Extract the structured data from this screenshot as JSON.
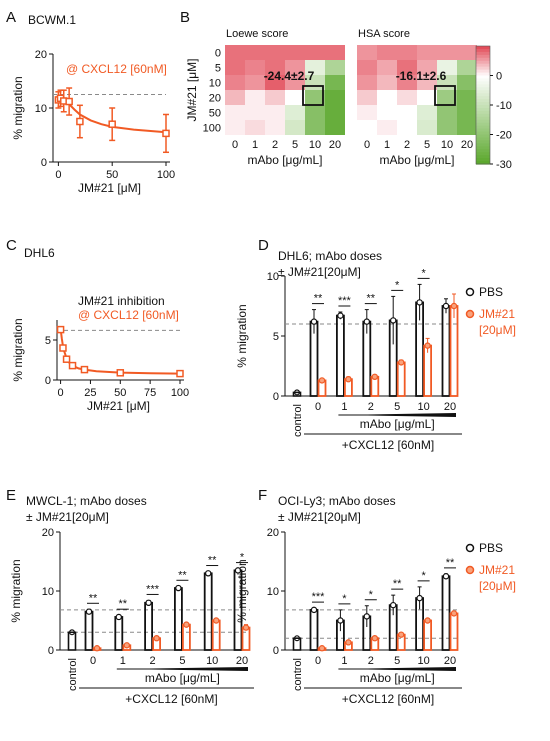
{
  "colors": {
    "orange": "#f15a24",
    "orange_light": "#f9a27c",
    "black": "#111111",
    "grid_dash": "#8a8a8a"
  },
  "chart_data": [
    {
      "panel": "A",
      "type": "line",
      "title": "BCWM.1",
      "annotation": "@ CXCL12 [60nM]",
      "xlabel": "JM#21 [μM]",
      "ylabel": "% migration",
      "xticks": [
        0,
        50,
        100
      ],
      "yticks": [
        0,
        10,
        20
      ],
      "xlim": [
        -5,
        100
      ],
      "ylim": [
        0,
        20
      ],
      "reference_y": 12.5,
      "points": [
        {
          "x": 0,
          "y": 11.5,
          "err": 1.5
        },
        {
          "x": 2,
          "y": 11.8,
          "err": 1.5
        },
        {
          "x": 5,
          "y": 11.3,
          "err": 2.0
        },
        {
          "x": 10,
          "y": 11.2,
          "err": 2.5
        },
        {
          "x": 20,
          "y": 7.5,
          "err": 3.0
        },
        {
          "x": 50,
          "y": 7.0,
          "err": 3.0
        },
        {
          "x": 100,
          "y": 5.3,
          "err": 3.5
        }
      ],
      "fit": [
        [
          0,
          12.0
        ],
        [
          5,
          11.4
        ],
        [
          10,
          10.7
        ],
        [
          15,
          9.7
        ],
        [
          20,
          8.8
        ],
        [
          30,
          7.7
        ],
        [
          40,
          7.0
        ],
        [
          50,
          6.5
        ],
        [
          70,
          6.0
        ],
        [
          100,
          5.5
        ]
      ]
    },
    {
      "panel": "B",
      "type": "heatmap",
      "ylabel": "JM#21 [μM]",
      "xlabel": "mAbo [μg/mL]",
      "x_categories": [
        "0",
        "1",
        "2",
        "5",
        "10",
        "20"
      ],
      "y_categories": [
        "0",
        "5",
        "10",
        "20",
        "50",
        "100"
      ],
      "colorbar_ticks": [
        0,
        -10,
        -20,
        -30
      ],
      "zlim": [
        -30,
        10
      ],
      "maps": [
        {
          "title": "Loewe score",
          "score": "-24.4±2.7",
          "values": [
            [
              8,
              8,
              8,
              8,
              8,
              8
            ],
            [
              8,
              7,
              8,
              6,
              -5,
              -15
            ],
            [
              7,
              6,
              9,
              6,
              -10,
              -25
            ],
            [
              4,
              1,
              3,
              0,
              -20,
              -28
            ],
            [
              1,
              1,
              1,
              -6,
              -22,
              -28
            ],
            [
              1,
              2,
              1,
              -8,
              -22,
              -28
            ]
          ]
        },
        {
          "title": "HSA score",
          "score": "-16.1±2.6",
          "values": [
            [
              6,
              7,
              7,
              6,
              6,
              6
            ],
            [
              7,
              5,
              8,
              5,
              -4,
              -15
            ],
            [
              6,
              4,
              7,
              4,
              -10,
              -22
            ],
            [
              3,
              0,
              2,
              0,
              -18,
              -25
            ],
            [
              1,
              0,
              0,
              -6,
              -20,
              -25
            ],
            [
              0,
              1,
              0,
              -7,
              -20,
              -25
            ]
          ]
        }
      ]
    },
    {
      "panel": "C",
      "type": "line",
      "title": "DHL6",
      "annotation_line1": "JM#21 inhibition",
      "annotation_line2": "@ CXCL12 [60nM]",
      "xlabel": "JM#21 [μM]",
      "ylabel": "% migration",
      "xticks": [
        0,
        25,
        50,
        75,
        100
      ],
      "yticks": [
        0,
        5
      ],
      "xlim": [
        -3,
        100
      ],
      "ylim": [
        0,
        7.5
      ],
      "reference_y": 6.2,
      "points": [
        {
          "x": 0,
          "y": 6.3,
          "err": 0.3
        },
        {
          "x": 2,
          "y": 4.0,
          "err": 0.3
        },
        {
          "x": 5,
          "y": 2.6,
          "err": 0.2
        },
        {
          "x": 10,
          "y": 1.8,
          "err": 0.2
        },
        {
          "x": 20,
          "y": 1.3,
          "err": 0.1
        },
        {
          "x": 50,
          "y": 0.9,
          "err": 0.1
        },
        {
          "x": 100,
          "y": 0.8,
          "err": 0.1
        }
      ],
      "fit": [
        [
          0,
          6.4
        ],
        [
          1,
          5.2
        ],
        [
          2,
          4.2
        ],
        [
          3,
          3.6
        ],
        [
          5,
          2.7
        ],
        [
          7,
          2.2
        ],
        [
          10,
          1.8
        ],
        [
          15,
          1.45
        ],
        [
          20,
          1.3
        ],
        [
          30,
          1.1
        ],
        [
          50,
          0.92
        ],
        [
          75,
          0.84
        ],
        [
          100,
          0.8
        ]
      ]
    },
    {
      "panel": "D",
      "type": "bar",
      "title": "DHL6; mAbo doses",
      "subtitle": "± JM#21[20μM]",
      "ylabel": "% migration",
      "yticks": [
        0,
        5,
        10
      ],
      "ylim": [
        0,
        10
      ],
      "dose_label": "mAbo [μg/mL]",
      "treatment_label": "+CXCL12 [60nM]",
      "control_label": "control",
      "control_value": 0.3,
      "categories": [
        "0",
        "1",
        "2",
        "5",
        "10",
        "20"
      ],
      "series": [
        {
          "name": "PBS",
          "values": [
            6.2,
            6.7,
            6.2,
            6.3,
            7.8,
            7.5
          ],
          "err": [
            1.0,
            0.3,
            1.0,
            2.0,
            1.5,
            0.6
          ]
        },
        {
          "name": "JM#21 [20μM]",
          "values": [
            1.3,
            1.4,
            1.6,
            2.8,
            4.2,
            7.5
          ],
          "err": [
            0.1,
            0.2,
            0.1,
            0.2,
            0.6,
            1.0
          ]
        }
      ],
      "significance": [
        "**",
        "***",
        "**",
        "*",
        "*",
        ""
      ],
      "reference_lines": [
        6.0
      ],
      "legend": [
        "PBS",
        "JM#21",
        "[20μM]"
      ]
    },
    {
      "panel": "E",
      "type": "bar",
      "title": "MWCL-1; mAbo doses",
      "subtitle": "± JM#21[20μM]",
      "ylabel": "% migration",
      "yticks": [
        0,
        10,
        20
      ],
      "ylim": [
        0,
        20
      ],
      "dose_label": "mAbo [μg/mL]",
      "treatment_label": "+CXCL12 [60nM]",
      "control_label": "control",
      "control_value": 3.0,
      "categories": [
        "0",
        "1",
        "2",
        "5",
        "10",
        "20"
      ],
      "series": [
        {
          "name": "PBS",
          "values": [
            6.5,
            5.6,
            8.0,
            10.5,
            13.0,
            13.5
          ],
          "err": [
            0.4,
            0.3,
            0.4,
            0.3,
            0.3,
            0.3
          ]
        },
        {
          "name": "JM#21 [20μM]",
          "values": [
            0.3,
            0.8,
            2.0,
            4.3,
            5.0,
            3.8
          ],
          "err": [
            0.1,
            0.2,
            0.3,
            0.3,
            0.3,
            0.5
          ]
        }
      ],
      "significance": [
        "**",
        "**",
        "***",
        "**",
        "**",
        "*"
      ],
      "reference_lines": [
        6.8,
        3.0
      ]
    },
    {
      "panel": "F",
      "type": "bar",
      "title": "OCI-Ly3; mAbo doses",
      "subtitle": "± JM#21[20μM]",
      "ylabel": "% migration",
      "yticks": [
        0,
        10,
        20
      ],
      "ylim": [
        0,
        20
      ],
      "dose_label": "mAbo [μg/mL]",
      "treatment_label": "+CXCL12 [60nM]",
      "control_label": "control",
      "control_value": 2.0,
      "categories": [
        "0",
        "1",
        "2",
        "5",
        "10",
        "20"
      ],
      "series": [
        {
          "name": "PBS",
          "values": [
            6.8,
            5.0,
            5.7,
            7.6,
            8.8,
            12.5
          ],
          "err": [
            0.3,
            1.8,
            1.8,
            1.7,
            1.9,
            0.4
          ]
        },
        {
          "name": "JM#21 [20μM]",
          "values": [
            0.3,
            1.3,
            2.0,
            2.6,
            5.0,
            6.2
          ],
          "err": [
            0.1,
            0.3,
            0.3,
            0.3,
            0.3,
            0.4
          ]
        }
      ],
      "significance": [
        "***",
        "*",
        "*",
        "**",
        "*",
        "**"
      ],
      "reference_lines": [
        6.8,
        2.0
      ],
      "legend": [
        "PBS",
        "JM#21",
        "[20μM]"
      ]
    }
  ],
  "panel_letters": [
    "A",
    "B",
    "C",
    "D",
    "E",
    "F"
  ]
}
